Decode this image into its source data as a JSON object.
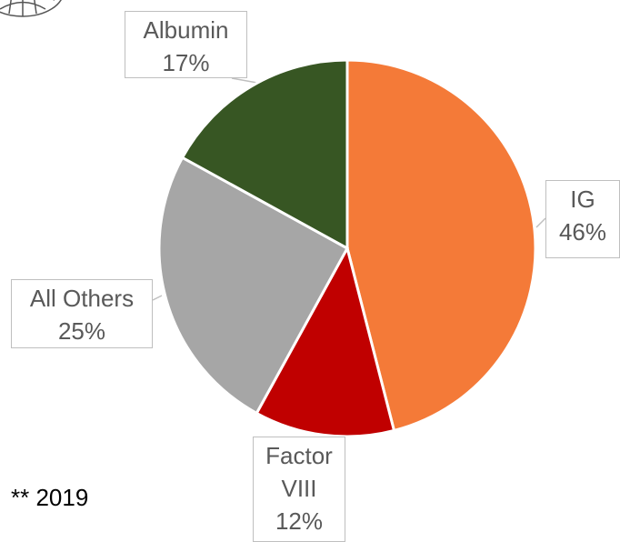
{
  "chart_data": {
    "type": "pie",
    "categories": [
      "IG",
      "Factor VIII",
      "All Others",
      "Albumin"
    ],
    "values": [
      46,
      12,
      25,
      17
    ],
    "value_labels": [
      "46%",
      "12%",
      "25%",
      "17%"
    ],
    "colors": [
      "#f47a38",
      "#c00000",
      "#a6a6a6",
      "#375623"
    ],
    "footnote": "** 2019"
  }
}
